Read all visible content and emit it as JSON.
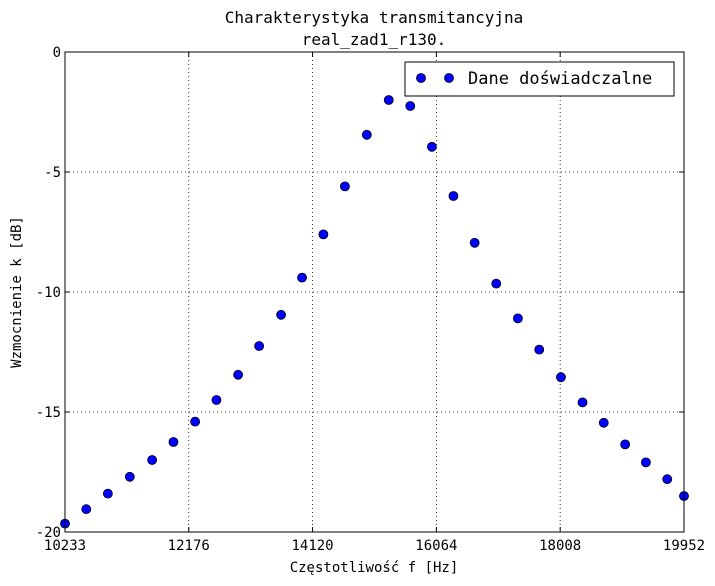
{
  "chart_data": {
    "type": "scatter",
    "title": [
      "Charakterystyka transmitancyjna",
      "real_zad1_r130."
    ],
    "xlabel": "Częstotliwość f [Hz]",
    "ylabel": "Wzmocnienie k [dB]",
    "xlim": [
      10233,
      19952
    ],
    "ylim": [
      -20,
      0
    ],
    "xticks": [
      10233,
      12176,
      14120,
      16064,
      18008,
      19952
    ],
    "yticks": [
      0,
      -5,
      -10,
      -15,
      -20
    ],
    "ytick_labels": [
      "0",
      "-5",
      "-10",
      "-15",
      "-20"
    ],
    "grid": true,
    "legend_position": "top-right",
    "marker_color": "#0000ff",
    "series": [
      {
        "name": "Dane doświadczalne",
        "x": [
          10233,
          10567,
          10906,
          11251,
          11601,
          11936,
          12276,
          12611,
          12951,
          13281,
          13626,
          13955,
          14290,
          14628,
          14972,
          15316,
          15654,
          15994,
          16332,
          16665,
          17004,
          17344,
          17679,
          18020,
          18359,
          18692,
          19028,
          19354,
          19689,
          19952
        ],
        "y": [
          -19.65,
          -19.05,
          -18.4,
          -17.7,
          -17.0,
          -16.25,
          -15.4,
          -14.5,
          -13.45,
          -12.25,
          -10.95,
          -9.4,
          -7.6,
          -5.6,
          -3.45,
          -2.0,
          -2.25,
          -3.95,
          -6.0,
          -7.95,
          -9.65,
          -11.1,
          -12.4,
          -13.55,
          -14.6,
          -15.45,
          -16.35,
          -17.1,
          -17.8,
          -18.5
        ]
      }
    ]
  }
}
